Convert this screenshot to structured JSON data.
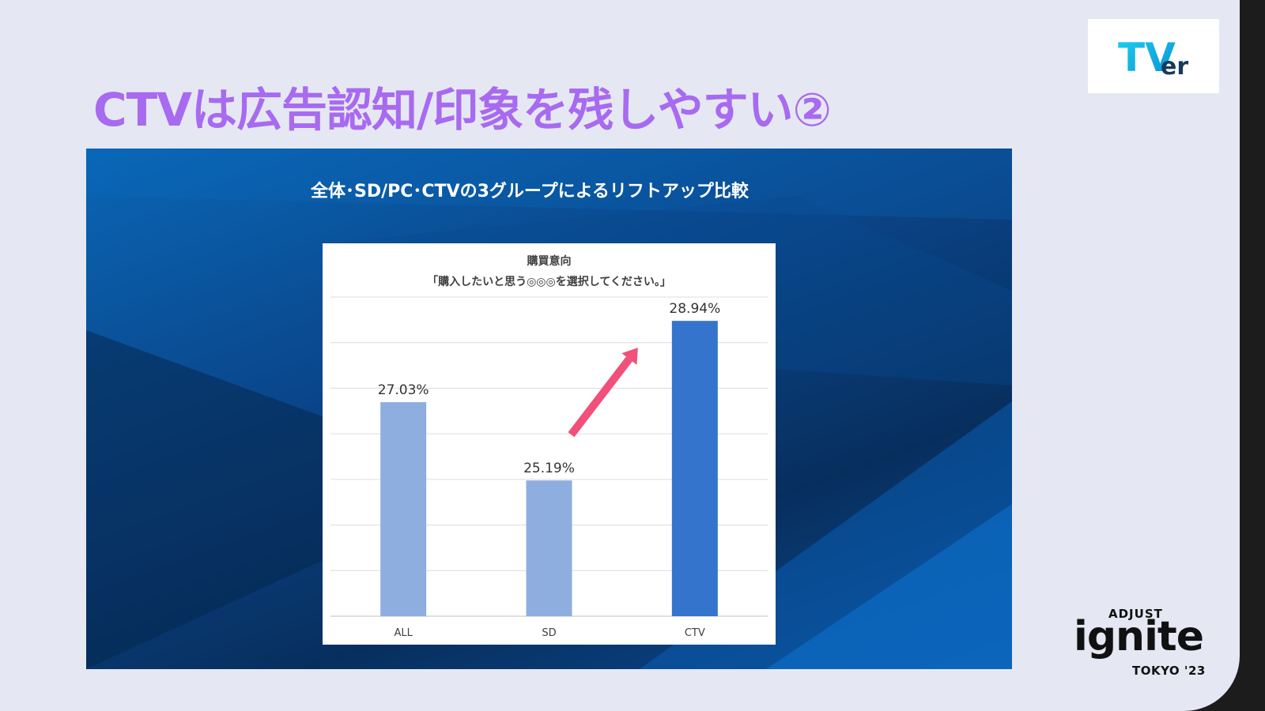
{
  "slide": {
    "title": "CTVは広告認知/印象を残しやすい②",
    "panel_heading": "全体･SD/PC･CTVの3グループによるリフトアップ比較"
  },
  "logos": {
    "tver": {
      "text_main": "TV",
      "text_sub": "er"
    },
    "ignite": {
      "top": "ADJUST",
      "main": "ignite",
      "bottom": "TOKYO '23"
    }
  },
  "colors": {
    "title": "#a86af0",
    "bar_light": "#8eaee0",
    "bar_dark": "#3474cc",
    "arrow": "#f0507a",
    "panel": "#0a4488"
  },
  "chart_data": {
    "type": "bar",
    "title": "購買意向",
    "subtitle": "「購入したいと思う◎◎◎を選択してください。」",
    "categories": [
      "ALL",
      "SD",
      "CTV"
    ],
    "values": [
      27.03,
      25.19,
      28.94
    ],
    "labels": [
      "27.03%",
      "25.19%",
      "28.94%"
    ],
    "highlight": "CTV",
    "ylim": [
      22.0,
      29.5
    ],
    "grid": true,
    "annotation": "upward arrow from SD to CTV"
  }
}
